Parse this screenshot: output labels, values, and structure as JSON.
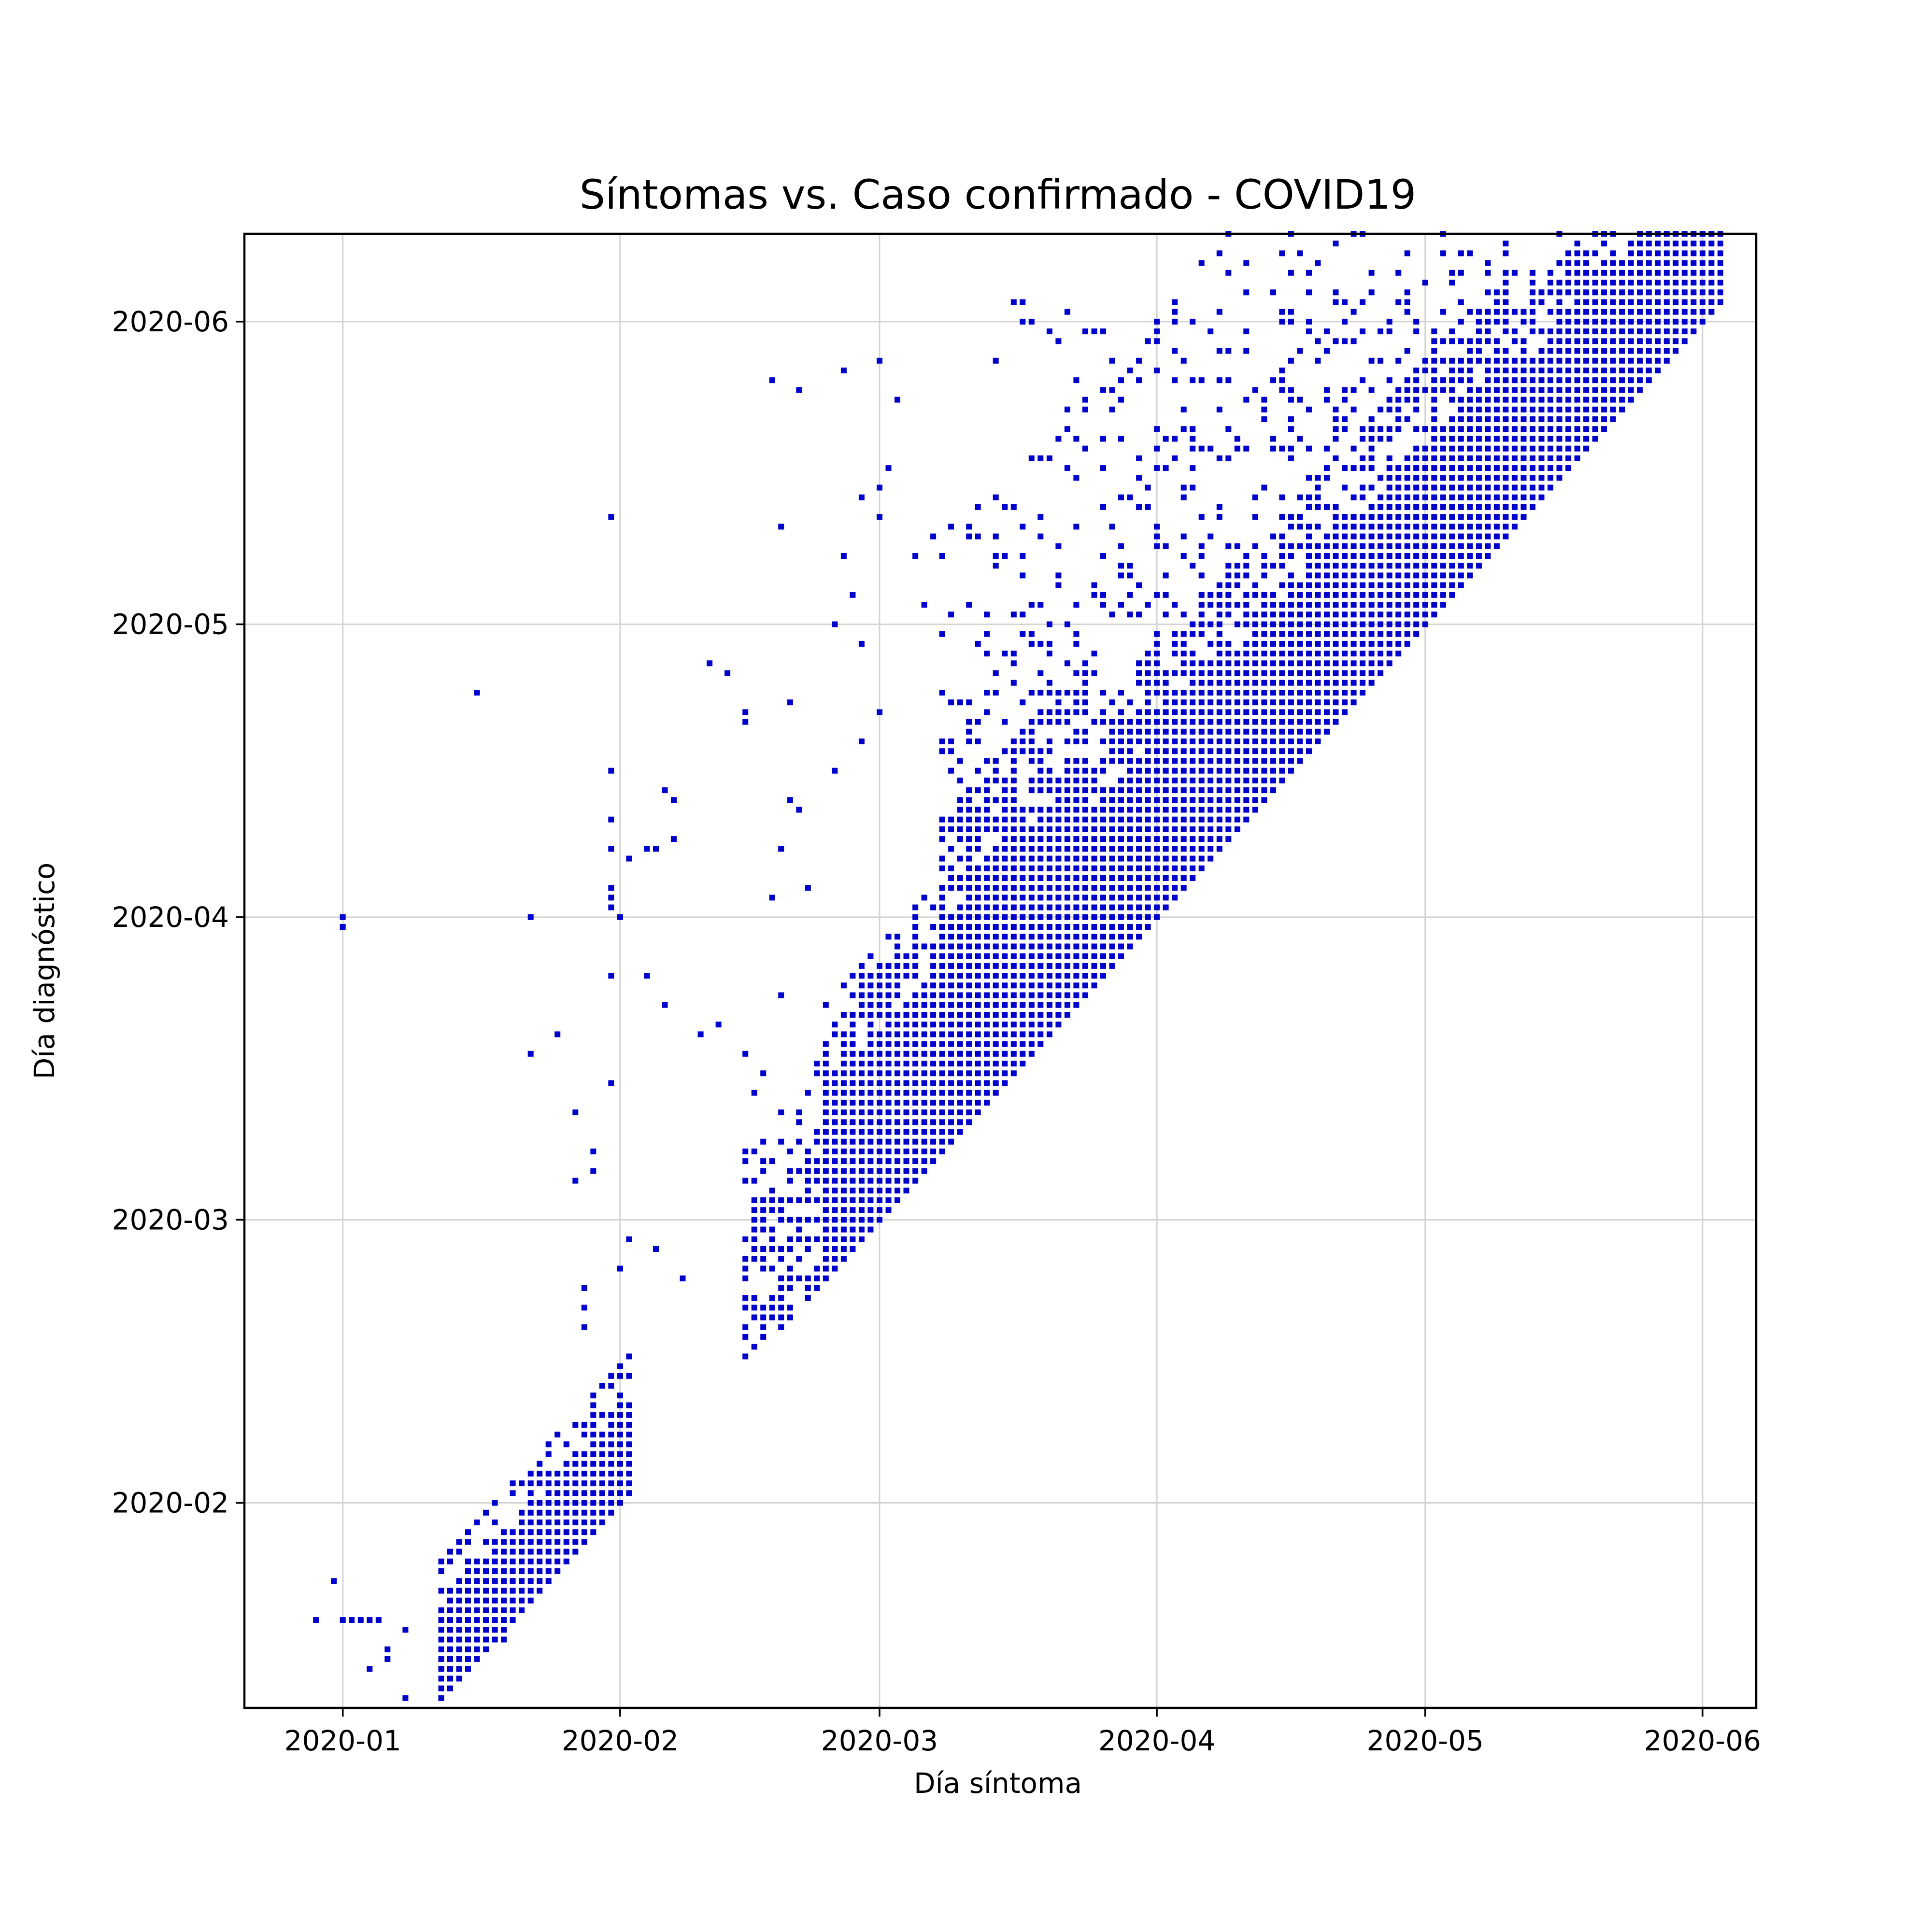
{
  "chart_data": {
    "type": "scatter",
    "title": "Síntomas vs. Caso confirmado - COVID19",
    "xlabel": "Día síntoma",
    "ylabel": "Día diagnóstico",
    "x_ticks": [
      "2020-01",
      "2020-02",
      "2020-03",
      "2020-04",
      "2020-05",
      "2020-06"
    ],
    "y_ticks": [
      "2020-02",
      "2020-03",
      "2020-04",
      "2020-05",
      "2020-06"
    ],
    "xlim": [
      "2019-12-21",
      "2020-06-07"
    ],
    "ylim": [
      "2020-01-11",
      "2020-06-10"
    ],
    "grid": true,
    "legend": "none",
    "marker": "square",
    "color": "#0000cc",
    "regions": [
      {
        "x_from": "2020-01-12",
        "x_to": "2020-02-02",
        "delay_max": 14,
        "fill": 1.0
      },
      {
        "x_from": "2020-02-15",
        "x_to": "2020-02-24",
        "delay_max": 22,
        "fill": 0.55
      },
      {
        "x_from": "2020-02-24",
        "x_to": "2020-03-08",
        "delay_max": 28,
        "fill": 1.0
      },
      {
        "x_from": "2020-03-08",
        "x_to": "2020-03-24",
        "delay_max": 34,
        "fill": 1.0
      },
      {
        "x_from": "2020-03-24",
        "x_to": "2020-05-10",
        "delay_max": 27,
        "fill": 1.0
      },
      {
        "x_from": "2020-05-10",
        "x_to": "2020-06-03",
        "delay_max": 22,
        "fill": 1.0
      },
      {
        "x_from": "2020-03-08",
        "x_to": "2020-05-20",
        "delay_max": 62,
        "fill": 0.22
      }
    ],
    "points": [
      [
        "2019-12-29",
        "2020-01-20"
      ],
      [
        "2019-12-31",
        "2020-01-24"
      ],
      [
        "2020-01-01",
        "2020-01-20"
      ],
      [
        "2020-01-02",
        "2020-01-20"
      ],
      [
        "2020-01-03",
        "2020-01-20"
      ],
      [
        "2020-01-04",
        "2020-01-20"
      ],
      [
        "2020-01-05",
        "2020-01-20"
      ],
      [
        "2020-01-06",
        "2020-01-16"
      ],
      [
        "2020-01-06",
        "2020-01-17"
      ],
      [
        "2020-01-08",
        "2020-01-12"
      ],
      [
        "2020-01-08",
        "2020-01-19"
      ],
      [
        "2020-01-04",
        "2020-01-15"
      ],
      [
        "2020-01-01",
        "2020-03-31"
      ],
      [
        "2020-01-01",
        "2020-04-01"
      ],
      [
        "2020-01-16",
        "2020-04-24"
      ],
      [
        "2020-01-19",
        "2020-01-18"
      ],
      [
        "2020-01-21",
        "2020-01-31"
      ],
      [
        "2020-01-22",
        "2020-03-18"
      ],
      [
        "2020-01-22",
        "2020-04-01"
      ],
      [
        "2020-01-25",
        "2020-03-20"
      ],
      [
        "2020-01-27",
        "2020-03-05"
      ],
      [
        "2020-01-27",
        "2020-03-12"
      ],
      [
        "2020-01-28",
        "2020-02-23"
      ],
      [
        "2020-01-28",
        "2020-02-19"
      ],
      [
        "2020-01-28",
        "2020-02-21"
      ],
      [
        "2020-01-29",
        "2020-03-06"
      ],
      [
        "2020-01-29",
        "2020-03-08"
      ],
      [
        "2020-01-31",
        "2020-04-02"
      ],
      [
        "2020-01-31",
        "2020-04-03"
      ],
      [
        "2020-01-31",
        "2020-04-04"
      ],
      [
        "2020-01-31",
        "2020-04-08"
      ],
      [
        "2020-01-31",
        "2020-04-11"
      ],
      [
        "2020-01-31",
        "2020-05-12"
      ],
      [
        "2020-01-31",
        "2020-03-15"
      ],
      [
        "2020-01-31",
        "2020-04-16"
      ],
      [
        "2020-01-31",
        "2020-03-26"
      ],
      [
        "2020-02-02",
        "2020-04-07"
      ],
      [
        "2020-02-02",
        "2020-02-28"
      ],
      [
        "2020-02-01",
        "2020-04-01"
      ],
      [
        "2020-02-01",
        "2020-02-25"
      ],
      [
        "2020-02-04",
        "2020-03-26"
      ],
      [
        "2020-02-04",
        "2020-04-08"
      ],
      [
        "2020-02-05",
        "2020-04-08"
      ],
      [
        "2020-02-05",
        "2020-02-27"
      ],
      [
        "2020-02-06",
        "2020-03-23"
      ],
      [
        "2020-02-06",
        "2020-04-14"
      ],
      [
        "2020-02-07",
        "2020-04-09"
      ],
      [
        "2020-02-07",
        "2020-04-13"
      ],
      [
        "2020-02-08",
        "2020-02-24"
      ],
      [
        "2020-02-10",
        "2020-03-20"
      ],
      [
        "2020-02-11",
        "2020-04-27"
      ],
      [
        "2020-02-12",
        "2020-03-21"
      ],
      [
        "2020-02-13",
        "2020-04-26"
      ],
      [
        "2020-02-15",
        "2020-04-21"
      ],
      [
        "2020-02-15",
        "2020-04-22"
      ],
      [
        "2020-02-15",
        "2020-03-18"
      ],
      [
        "2020-02-16",
        "2020-03-14"
      ],
      [
        "2020-02-17",
        "2020-03-16"
      ],
      [
        "2020-02-18",
        "2020-04-03"
      ],
      [
        "2020-02-19",
        "2020-04-08"
      ],
      [
        "2020-02-19",
        "2020-03-24"
      ],
      [
        "2020-02-20",
        "2020-04-23"
      ],
      [
        "2020-02-20",
        "2020-04-13"
      ],
      [
        "2020-02-21",
        "2020-04-12"
      ],
      [
        "2020-02-22",
        "2020-04-04"
      ],
      [
        "2020-02-23",
        "2020-03-17"
      ],
      [
        "2020-02-25",
        "2020-04-16"
      ],
      [
        "2020-02-25",
        "2020-05-01"
      ],
      [
        "2020-02-26",
        "2020-05-08"
      ],
      [
        "2020-02-28",
        "2020-04-19"
      ],
      [
        "2020-02-28",
        "2020-04-29"
      ],
      [
        "2020-03-01",
        "2020-04-22"
      ],
      [
        "2020-02-18",
        "2020-05-26"
      ],
      [
        "2020-02-19",
        "2020-05-11"
      ],
      [
        "2020-02-21",
        "2020-05-25"
      ],
      [
        "2020-02-26",
        "2020-05-27"
      ],
      [
        "2020-02-27",
        "2020-05-04"
      ],
      [
        "2020-02-28",
        "2020-05-14"
      ],
      [
        "2020-03-01",
        "2020-05-15"
      ],
      [
        "2020-03-02",
        "2020-05-17"
      ],
      [
        "2020-03-01",
        "2020-05-28"
      ],
      [
        "2020-03-03",
        "2020-05-24"
      ],
      [
        "2020-03-01",
        "2020-05-12"
      ],
      [
        "2020-03-05",
        "2020-05-08"
      ],
      [
        "2020-03-06",
        "2020-05-03"
      ],
      [
        "2020-03-07",
        "2020-05-10"
      ],
      [
        "2020-03-09",
        "2020-05-11"
      ],
      [
        "2020-03-15",
        "2020-05-08"
      ],
      [
        "2020-03-16",
        "2020-06-03"
      ],
      [
        "2020-03-17",
        "2020-06-03"
      ],
      [
        "2020-03-17",
        "2020-06-01"
      ],
      [
        "2020-03-18",
        "2020-06-01"
      ],
      [
        "2020-03-20",
        "2020-05-31"
      ],
      [
        "2020-03-21",
        "2020-05-30"
      ],
      [
        "2020-03-22",
        "2020-06-02"
      ],
      [
        "2020-03-24",
        "2020-05-31"
      ],
      [
        "2020-03-25",
        "2020-05-31"
      ],
      [
        "2020-03-26",
        "2020-05-31"
      ],
      [
        "2020-03-27",
        "2020-05-28"
      ],
      [
        "2020-03-30",
        "2020-05-28"
      ],
      [
        "2020-04-01",
        "2020-05-31"
      ],
      [
        "2020-04-03",
        "2020-06-03"
      ],
      [
        "2020-04-08",
        "2020-05-26"
      ],
      [
        "2020-04-11",
        "2020-05-29"
      ],
      [
        "2020-04-13",
        "2020-05-22"
      ],
      [
        "2020-04-15",
        "2020-05-26"
      ],
      [
        "2020-04-20",
        "2020-05-24"
      ],
      [
        "2020-04-22",
        "2020-05-21"
      ],
      [
        "2020-04-24",
        "2020-05-31"
      ],
      [
        "2020-04-27",
        "2020-05-23"
      ],
      [
        "2020-04-30",
        "2020-06-01"
      ],
      [
        "2020-05-02",
        "2020-05-31"
      ],
      [
        "2020-05-03",
        "2020-05-30"
      ],
      [
        "2020-03-14",
        "2020-05-28"
      ],
      [
        "2020-03-23",
        "2020-05-26"
      ],
      [
        "2020-03-28",
        "2020-05-24"
      ],
      [
        "2020-04-02",
        "2020-05-20"
      ],
      [
        "2020-04-06",
        "2020-05-19"
      ],
      [
        "2020-04-09",
        "2020-05-18"
      ],
      [
        "2020-04-17",
        "2020-05-20"
      ]
    ]
  }
}
